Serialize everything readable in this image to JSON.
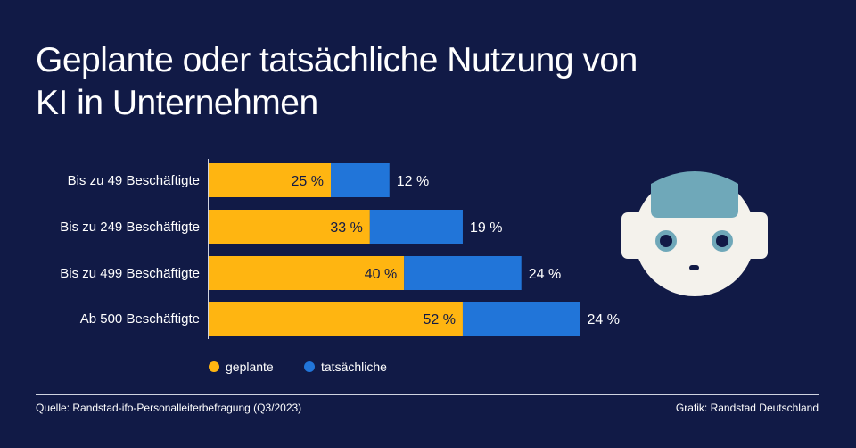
{
  "chart_data": {
    "type": "bar",
    "stacked": true,
    "orientation": "horizontal",
    "title": "Geplante oder tatsächliche Nutzung von KI in Unternehmen",
    "categories": [
      "Bis zu 49 Beschäftigte",
      "Bis zu 249 Beschäftigte",
      "Bis zu 499 Beschäftigte",
      "Ab 500 Beschäftigte"
    ],
    "series": [
      {
        "name": "geplante",
        "values": [
          25,
          33,
          40,
          52
        ],
        "labels": [
          "25 %",
          "33 %",
          "40 %",
          "52 %"
        ],
        "color": "#ffb511"
      },
      {
        "name": "tatsächliche",
        "values": [
          12,
          19,
          24,
          24
        ],
        "labels": [
          "12 %",
          "19 %",
          "24 %",
          "24 %"
        ],
        "color": "#2175d9"
      }
    ],
    "unit": "%",
    "legend": "bottom",
    "grid": false
  },
  "footer": {
    "source": "Quelle: Randstad-ifo-Personalleiterbefragung (Q3/2023)",
    "credit": "Grafik: Randstad Deutschland"
  },
  "colors": {
    "background": "#111a46",
    "robot_face": "#f4f2ec",
    "robot_accent": "#6fa8b9"
  },
  "illustration": "robot-head-icon"
}
